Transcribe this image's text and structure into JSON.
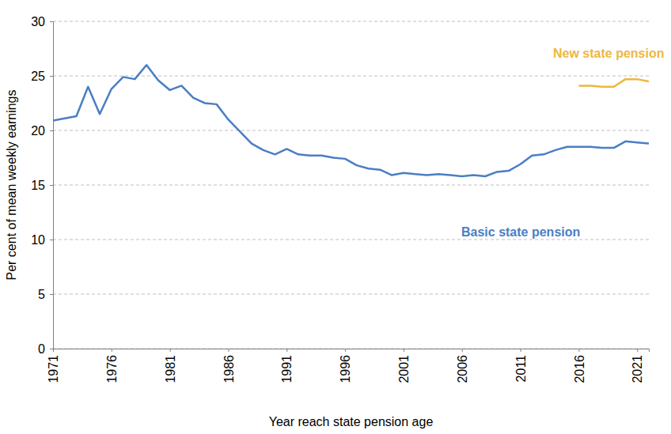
{
  "chart_data": {
    "type": "line",
    "x_label": "Year reach state pension age",
    "y_label": "Per cent of mean weekly earnings",
    "x": [
      1971,
      1972,
      1973,
      1974,
      1975,
      1976,
      1977,
      1978,
      1979,
      1980,
      1981,
      1982,
      1983,
      1984,
      1985,
      1986,
      1987,
      1988,
      1989,
      1990,
      1991,
      1992,
      1993,
      1994,
      1995,
      1996,
      1997,
      1998,
      1999,
      2000,
      2001,
      2002,
      2003,
      2004,
      2005,
      2006,
      2007,
      2008,
      2009,
      2010,
      2011,
      2012,
      2013,
      2014,
      2015,
      2016,
      2017,
      2018,
      2019,
      2020,
      2021,
      2022
    ],
    "series": [
      {
        "name": "Basic state pension",
        "color": "#4a7ec4",
        "values": [
          20.9,
          21.1,
          21.3,
          24.0,
          21.5,
          23.8,
          24.9,
          24.7,
          26.0,
          24.6,
          23.7,
          24.1,
          23.0,
          22.5,
          22.4,
          21.0,
          19.9,
          18.8,
          18.2,
          17.8,
          18.3,
          17.8,
          17.7,
          17.7,
          17.5,
          17.4,
          16.8,
          16.5,
          16.4,
          15.9,
          16.1,
          16.0,
          15.9,
          16.0,
          15.9,
          15.8,
          15.9,
          15.8,
          16.2,
          16.3,
          16.9,
          17.7,
          17.8,
          18.2,
          18.5,
          18.5,
          18.5,
          18.4,
          18.4,
          19.0,
          18.9,
          18.8
        ]
      },
      {
        "name": "New state pension",
        "color": "#eeb73f",
        "values": [
          null,
          null,
          null,
          null,
          null,
          null,
          null,
          null,
          null,
          null,
          null,
          null,
          null,
          null,
          null,
          null,
          null,
          null,
          null,
          null,
          null,
          null,
          null,
          null,
          null,
          null,
          null,
          null,
          null,
          null,
          null,
          null,
          null,
          null,
          null,
          null,
          null,
          null,
          null,
          null,
          null,
          null,
          null,
          null,
          null,
          24.1,
          24.1,
          24.0,
          24.0,
          24.7,
          24.7,
          24.5
        ]
      }
    ],
    "xlim": [
      1971,
      2022
    ],
    "xticks": [
      1971,
      1976,
      1981,
      1986,
      1991,
      1996,
      2001,
      2006,
      2011,
      2016,
      2021
    ],
    "ylim": [
      0,
      30
    ],
    "yticks": [
      0,
      5,
      10,
      15,
      20,
      25,
      30
    ],
    "grid": true
  }
}
